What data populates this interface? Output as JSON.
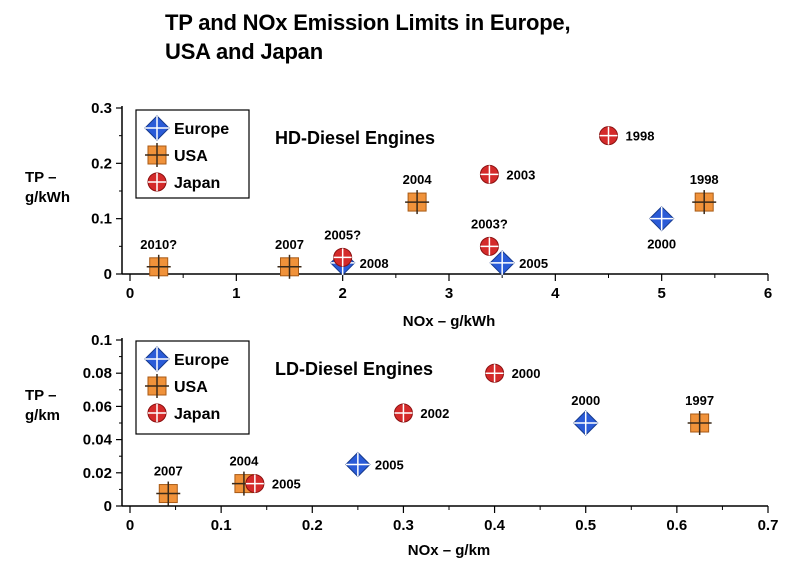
{
  "title": {
    "line1": "TP and NOx Emission Limits in Europe,",
    "line2": "USA and Japan"
  },
  "colors": {
    "Europe": "#2a5bd7",
    "USA": "#f0923a",
    "Japan": "#d42a2a"
  },
  "chart_data": [
    {
      "type": "scatter",
      "subtitle": "HD-Diesel Engines",
      "xlabel": "NOx – g/kWh",
      "ylabel_line1": "TP –",
      "ylabel_line2": "g/kWh",
      "xlim": [
        0,
        6
      ],
      "ylim": [
        0,
        0.3
      ],
      "xticks": [
        0,
        1,
        2,
        3,
        4,
        5,
        6
      ],
      "xtick_labels": [
        "0",
        "1",
        "2",
        "3",
        "4",
        "5",
        "6"
      ],
      "yticks": [
        0,
        0.1,
        0.2,
        0.3
      ],
      "ytick_labels": [
        "0",
        "0.1",
        "0.2",
        "0.3"
      ],
      "legend": {
        "position": "top-left",
        "entries": [
          {
            "name": "Europe",
            "marker": "diamond"
          },
          {
            "name": "USA",
            "marker": "square"
          },
          {
            "name": "Japan",
            "marker": "circle"
          }
        ]
      },
      "series": [
        {
          "name": "Europe",
          "marker": "diamond",
          "points": [
            {
              "x": 5.0,
              "y": 0.1,
              "label": "2000",
              "label_pos": "below"
            },
            {
              "x": 3.5,
              "y": 0.02,
              "label": "2005",
              "label_pos": "right"
            },
            {
              "x": 2.0,
              "y": 0.02,
              "label": "2008",
              "label_pos": "right"
            }
          ]
        },
        {
          "name": "USA",
          "marker": "square",
          "points": [
            {
              "x": 5.4,
              "y": 0.13,
              "label": "1998",
              "label_pos": "above"
            },
            {
              "x": 2.7,
              "y": 0.13,
              "label": "2004",
              "label_pos": "above"
            },
            {
              "x": 1.5,
              "y": 0.013,
              "label": "2007",
              "label_pos": "above"
            },
            {
              "x": 0.27,
              "y": 0.013,
              "label": "2010?",
              "label_pos": "above"
            }
          ]
        },
        {
          "name": "Japan",
          "marker": "circle",
          "points": [
            {
              "x": 4.5,
              "y": 0.25,
              "label": "1998",
              "label_pos": "right"
            },
            {
              "x": 3.38,
              "y": 0.18,
              "label": "2003",
              "label_pos": "right"
            },
            {
              "x": 3.38,
              "y": 0.05,
              "label": "2003?",
              "label_pos": "above"
            },
            {
              "x": 2.0,
              "y": 0.03,
              "label": "2005?",
              "label_pos": "above"
            }
          ]
        }
      ]
    },
    {
      "type": "scatter",
      "subtitle": "LD-Diesel Engines",
      "xlabel": "NOx – g/km",
      "ylabel_line1": "TP –",
      "ylabel_line2": "g/km",
      "xlim": [
        0,
        0.7
      ],
      "ylim": [
        0,
        0.1
      ],
      "xticks": [
        0,
        0.1,
        0.2,
        0.3,
        0.4,
        0.5,
        0.6,
        0.7
      ],
      "xtick_labels": [
        "0",
        "0.1",
        "0.2",
        "0.3",
        "0.4",
        "0.5",
        "0.6",
        "0.7"
      ],
      "yticks": [
        0,
        0.02,
        0.04,
        0.06,
        0.08,
        0.1
      ],
      "ytick_labels": [
        "0",
        "0.02",
        "0.04",
        "0.06",
        "0.08",
        "0.1"
      ],
      "legend": {
        "position": "top-left",
        "entries": [
          {
            "name": "Europe",
            "marker": "diamond"
          },
          {
            "name": "USA",
            "marker": "square"
          },
          {
            "name": "Japan",
            "marker": "circle"
          }
        ]
      },
      "series": [
        {
          "name": "Europe",
          "marker": "diamond",
          "points": [
            {
              "x": 0.5,
              "y": 0.05,
              "label": "2000",
              "label_pos": "above"
            },
            {
              "x": 0.25,
              "y": 0.025,
              "label": "2005",
              "label_pos": "right"
            }
          ]
        },
        {
          "name": "USA",
          "marker": "square",
          "points": [
            {
              "x": 0.625,
              "y": 0.05,
              "label": "1997",
              "label_pos": "above"
            },
            {
              "x": 0.125,
              "y": 0.0135,
              "label": "2004",
              "label_pos": "above"
            },
            {
              "x": 0.042,
              "y": 0.0075,
              "label": "2007",
              "label_pos": "above"
            }
          ]
        },
        {
          "name": "Japan",
          "marker": "circle",
          "points": [
            {
              "x": 0.4,
              "y": 0.08,
              "label": "2000",
              "label_pos": "right"
            },
            {
              "x": 0.3,
              "y": 0.056,
              "label": "2002",
              "label_pos": "right"
            },
            {
              "x": 0.137,
              "y": 0.0135,
              "label": "2005",
              "label_pos": "right"
            }
          ]
        }
      ]
    }
  ]
}
